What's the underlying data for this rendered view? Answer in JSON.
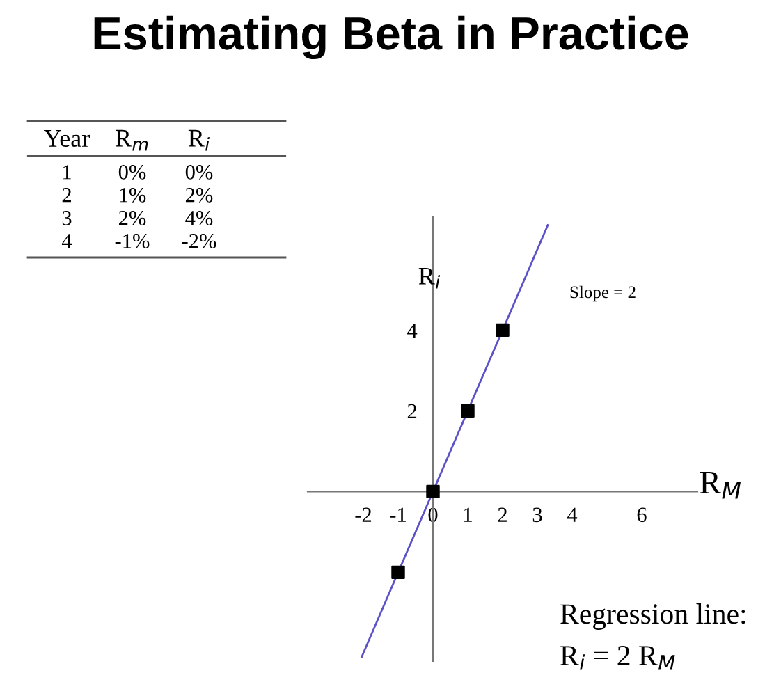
{
  "chart_data": {
    "type": "scatter",
    "title": "Estimating Beta in Practice",
    "xlabel": "R$_{M}$",
    "ylabel": "R$_{i}$",
    "series": [
      {
        "color": "#000000",
        "marker": "square",
        "x": [
          0,
          1,
          2,
          -1
        ],
        "values": [
          0,
          2,
          4,
          -2
        ]
      },
      {
        "type": "line",
        "color": "#5b52c8",
        "marker": "none",
        "line_style": "solid",
        "x": [
          -2.05,
          3.3
        ],
        "values": [
          -4.1,
          6.6
        ]
      }
    ],
    "xlim": [
      -3.6,
      7.6
    ],
    "ylim": [
      -4.2,
      6.8
    ],
    "xticks": [
      -2,
      -1,
      0,
      1,
      2,
      3,
      4,
      6
    ],
    "yticks": [
      2,
      4
    ],
    "grid": false,
    "legend": false,
    "annotations": [
      "Slope = 2",
      "Regression line:",
      "R$_{i}$ = 2 R$_{M}$",
      "Year",
      "R$_{m}$",
      "R$_{i}$",
      "1",
      "0%",
      "0%",
      "2",
      "1%",
      "2%",
      "3",
      "2%",
      "4%",
      "4",
      "-1%",
      "-2%"
    ]
  }
}
